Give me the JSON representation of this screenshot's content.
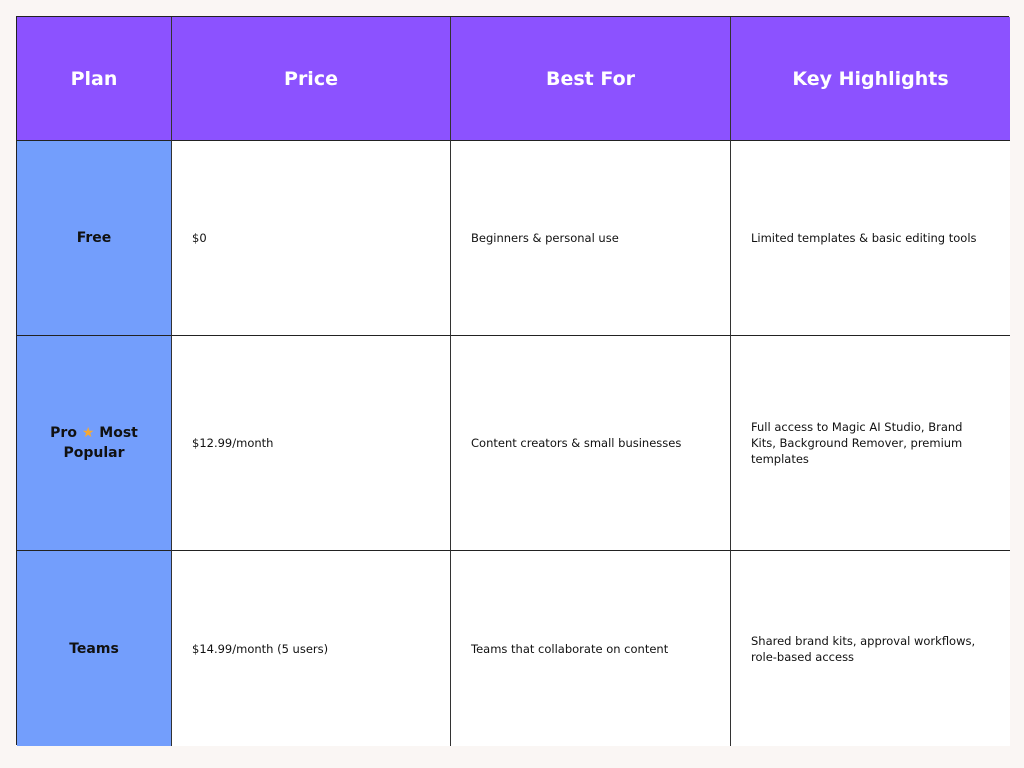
{
  "table": {
    "headers": [
      "Plan",
      "Price",
      "Best For",
      "Key Highlights"
    ],
    "rows": [
      {
        "plan": "Free",
        "badge": "",
        "price": "$0",
        "best_for": "Beginners & personal use",
        "highlights": "Limited templates & basic editing tools"
      },
      {
        "plan": "Pro",
        "badge": "Most Popular",
        "price": "$12.99/month",
        "best_for": "Content creators & small businesses",
        "highlights": "Full access to Magic AI Studio, Brand Kits, Background Remover, premium templates"
      },
      {
        "plan": "Teams",
        "badge": "",
        "price": "$14.99/month (5 users)",
        "best_for": "Teams that collaborate on content",
        "highlights": "Shared brand kits, approval workflows, role-based access"
      }
    ],
    "star_icon": "★",
    "colors": {
      "header": "#8c52ff",
      "plan_column": "#739efc",
      "background": "#faf6f4"
    }
  }
}
